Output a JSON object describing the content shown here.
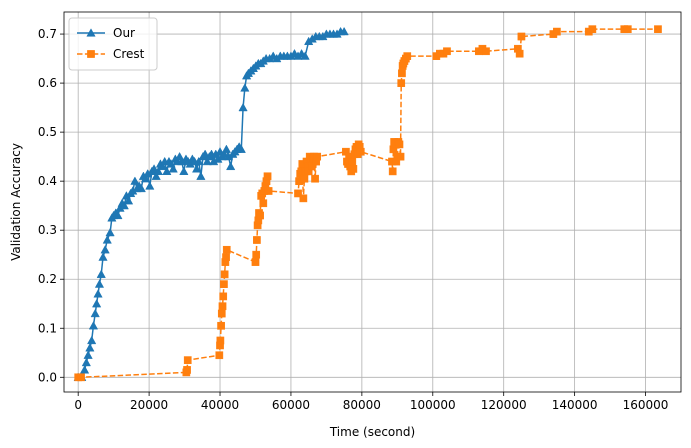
{
  "chart_data": {
    "type": "line",
    "title": "",
    "xlabel": "Time (second)",
    "ylabel": "Validation Accuracy",
    "xlim": [
      -4000,
      170000
    ],
    "ylim": [
      -0.03,
      0.745
    ],
    "xticks": [
      0,
      20000,
      40000,
      60000,
      80000,
      100000,
      120000,
      140000,
      160000
    ],
    "yticks": [
      0.0,
      0.1,
      0.2,
      0.3,
      0.4,
      0.5,
      0.6,
      0.7
    ],
    "grid": true,
    "legend_position": "top-left",
    "series": [
      {
        "name": "Our",
        "color": "#1f77b4",
        "marker": "triangle",
        "linestyle": "solid",
        "points": [
          [
            0,
            0.0
          ],
          [
            1000,
            0.0
          ],
          [
            1800,
            0.015
          ],
          [
            2300,
            0.03
          ],
          [
            2800,
            0.045
          ],
          [
            3300,
            0.06
          ],
          [
            3800,
            0.075
          ],
          [
            4300,
            0.105
          ],
          [
            4800,
            0.13
          ],
          [
            5200,
            0.15
          ],
          [
            5600,
            0.17
          ],
          [
            6000,
            0.19
          ],
          [
            6500,
            0.21
          ],
          [
            7000,
            0.245
          ],
          [
            7600,
            0.26
          ],
          [
            8200,
            0.28
          ],
          [
            9000,
            0.295
          ],
          [
            9500,
            0.325
          ],
          [
            10000,
            0.33
          ],
          [
            10600,
            0.335
          ],
          [
            11200,
            0.33
          ],
          [
            11800,
            0.345
          ],
          [
            12400,
            0.355
          ],
          [
            13000,
            0.35
          ],
          [
            13600,
            0.37
          ],
          [
            14200,
            0.36
          ],
          [
            14800,
            0.375
          ],
          [
            15400,
            0.38
          ],
          [
            16000,
            0.4
          ],
          [
            16600,
            0.385
          ],
          [
            17200,
            0.39
          ],
          [
            17800,
            0.385
          ],
          [
            18400,
            0.41
          ],
          [
            19000,
            0.405
          ],
          [
            19600,
            0.415
          ],
          [
            20200,
            0.39
          ],
          [
            20800,
            0.42
          ],
          [
            21400,
            0.425
          ],
          [
            22000,
            0.41
          ],
          [
            22600,
            0.42
          ],
          [
            23200,
            0.435
          ],
          [
            23800,
            0.43
          ],
          [
            24400,
            0.44
          ],
          [
            25000,
            0.42
          ],
          [
            25600,
            0.44
          ],
          [
            26200,
            0.435
          ],
          [
            26800,
            0.425
          ],
          [
            27400,
            0.445
          ],
          [
            28000,
            0.44
          ],
          [
            28600,
            0.45
          ],
          [
            29200,
            0.44
          ],
          [
            29800,
            0.42
          ],
          [
            30400,
            0.445
          ],
          [
            31000,
            0.44
          ],
          [
            31600,
            0.435
          ],
          [
            32200,
            0.445
          ],
          [
            32800,
            0.44
          ],
          [
            33400,
            0.425
          ],
          [
            34000,
            0.44
          ],
          [
            34600,
            0.41
          ],
          [
            35200,
            0.45
          ],
          [
            35800,
            0.455
          ],
          [
            36400,
            0.44
          ],
          [
            37000,
            0.45
          ],
          [
            37600,
            0.455
          ],
          [
            38200,
            0.44
          ],
          [
            38800,
            0.455
          ],
          [
            39400,
            0.445
          ],
          [
            40000,
            0.46
          ],
          [
            40600,
            0.45
          ],
          [
            41200,
            0.455
          ],
          [
            41800,
            0.465
          ],
          [
            42400,
            0.45
          ],
          [
            43000,
            0.43
          ],
          [
            43600,
            0.455
          ],
          [
            44200,
            0.46
          ],
          [
            44800,
            0.465
          ],
          [
            45400,
            0.47
          ],
          [
            46000,
            0.465
          ],
          [
            46500,
            0.55
          ],
          [
            47000,
            0.59
          ],
          [
            47500,
            0.615
          ],
          [
            48000,
            0.62
          ],
          [
            48700,
            0.625
          ],
          [
            49400,
            0.63
          ],
          [
            50100,
            0.635
          ],
          [
            50800,
            0.64
          ],
          [
            51500,
            0.64
          ],
          [
            52200,
            0.645
          ],
          [
            53000,
            0.65
          ],
          [
            54000,
            0.65
          ],
          [
            55000,
            0.655
          ],
          [
            56000,
            0.65
          ],
          [
            57000,
            0.655
          ],
          [
            58000,
            0.655
          ],
          [
            59000,
            0.655
          ],
          [
            60000,
            0.655
          ],
          [
            61000,
            0.66
          ],
          [
            62000,
            0.655
          ],
          [
            63000,
            0.66
          ],
          [
            64000,
            0.655
          ],
          [
            65000,
            0.685
          ],
          [
            66000,
            0.69
          ],
          [
            67000,
            0.695
          ],
          [
            68000,
            0.695
          ],
          [
            69000,
            0.695
          ],
          [
            70000,
            0.7
          ],
          [
            71000,
            0.7
          ],
          [
            72000,
            0.7
          ],
          [
            73000,
            0.7
          ],
          [
            74000,
            0.705
          ],
          [
            75000,
            0.705
          ]
        ]
      },
      {
        "name": "Crest",
        "color": "#ff7f0e",
        "marker": "square",
        "linestyle": "dashed",
        "points": [
          [
            0,
            0.0
          ],
          [
            800,
            0.0
          ],
          [
            30500,
            0.01
          ],
          [
            30700,
            0.015
          ],
          [
            30900,
            0.035
          ],
          [
            39800,
            0.045
          ],
          [
            40000,
            0.065
          ],
          [
            40100,
            0.075
          ],
          [
            40300,
            0.105
          ],
          [
            40500,
            0.13
          ],
          [
            40700,
            0.145
          ],
          [
            40900,
            0.165
          ],
          [
            41100,
            0.19
          ],
          [
            41300,
            0.21
          ],
          [
            41500,
            0.235
          ],
          [
            41700,
            0.245
          ],
          [
            41900,
            0.26
          ],
          [
            50000,
            0.235
          ],
          [
            50200,
            0.25
          ],
          [
            50400,
            0.28
          ],
          [
            50600,
            0.31
          ],
          [
            50800,
            0.32
          ],
          [
            51000,
            0.335
          ],
          [
            51300,
            0.33
          ],
          [
            51600,
            0.37
          ],
          [
            51900,
            0.375
          ],
          [
            52200,
            0.355
          ],
          [
            52500,
            0.38
          ],
          [
            52800,
            0.39
          ],
          [
            53100,
            0.4
          ],
          [
            53400,
            0.41
          ],
          [
            53700,
            0.38
          ],
          [
            62000,
            0.375
          ],
          [
            62300,
            0.4
          ],
          [
            62600,
            0.415
          ],
          [
            62900,
            0.42
          ],
          [
            63200,
            0.435
          ],
          [
            63500,
            0.365
          ],
          [
            63800,
            0.405
          ],
          [
            64100,
            0.42
          ],
          [
            64400,
            0.44
          ],
          [
            64700,
            0.43
          ],
          [
            65000,
            0.42
          ],
          [
            65300,
            0.45
          ],
          [
            65600,
            0.44
          ],
          [
            65900,
            0.43
          ],
          [
            66200,
            0.445
          ],
          [
            66500,
            0.45
          ],
          [
            66800,
            0.405
          ],
          [
            67100,
            0.44
          ],
          [
            67400,
            0.45
          ],
          [
            75500,
            0.46
          ],
          [
            75800,
            0.44
          ],
          [
            76100,
            0.435
          ],
          [
            76400,
            0.45
          ],
          [
            76700,
            0.43
          ],
          [
            77000,
            0.42
          ],
          [
            77300,
            0.44
          ],
          [
            77600,
            0.425
          ],
          [
            77900,
            0.455
          ],
          [
            78200,
            0.465
          ],
          [
            78500,
            0.47
          ],
          [
            78800,
            0.455
          ],
          [
            79100,
            0.475
          ],
          [
            79400,
            0.47
          ],
          [
            79700,
            0.46
          ],
          [
            88500,
            0.44
          ],
          [
            88700,
            0.42
          ],
          [
            88900,
            0.465
          ],
          [
            89100,
            0.48
          ],
          [
            89400,
            0.475
          ],
          [
            89700,
            0.44
          ],
          [
            90000,
            0.45
          ],
          [
            90300,
            0.48
          ],
          [
            90600,
            0.475
          ],
          [
            90900,
            0.45
          ],
          [
            91100,
            0.6
          ],
          [
            91300,
            0.62
          ],
          [
            91500,
            0.635
          ],
          [
            91700,
            0.64
          ],
          [
            92000,
            0.645
          ],
          [
            92400,
            0.65
          ],
          [
            92800,
            0.655
          ],
          [
            101000,
            0.655
          ],
          [
            102000,
            0.66
          ],
          [
            103000,
            0.66
          ],
          [
            104000,
            0.665
          ],
          [
            113000,
            0.665
          ],
          [
            114000,
            0.67
          ],
          [
            115000,
            0.665
          ],
          [
            124000,
            0.67
          ],
          [
            124500,
            0.66
          ],
          [
            125000,
            0.695
          ],
          [
            134000,
            0.7
          ],
          [
            135000,
            0.705
          ],
          [
            144000,
            0.705
          ],
          [
            145000,
            0.71
          ],
          [
            154000,
            0.71
          ],
          [
            155000,
            0.71
          ],
          [
            163500,
            0.71
          ]
        ]
      }
    ]
  }
}
